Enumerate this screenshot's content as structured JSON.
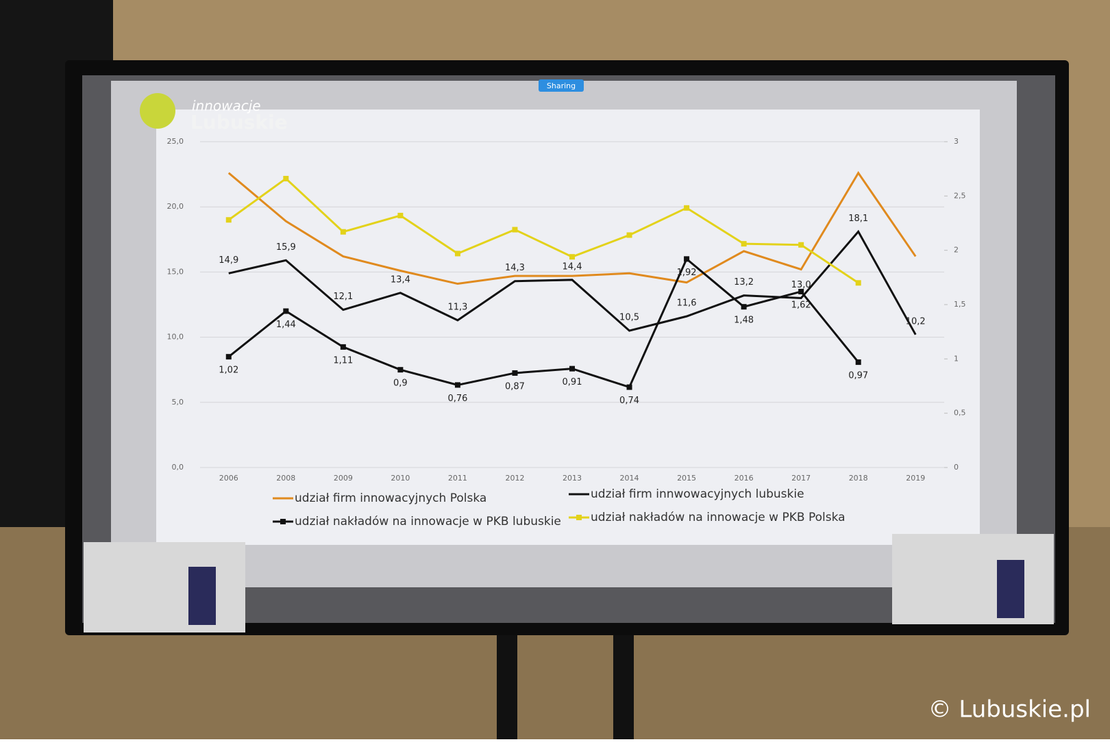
{
  "sharing_badge": "Sharing",
  "logo": [
    "innowacje",
    "Lubuskie"
  ],
  "watermark": "© Lubuskie.pl",
  "chart_data": {
    "type": "line",
    "categories": [
      "2006",
      "2008",
      "2009",
      "2010",
      "2011",
      "2012",
      "2013",
      "2014",
      "2015",
      "2016",
      "2017",
      "2018",
      "2019"
    ],
    "ylim": [
      0,
      25
    ],
    "yticks": [
      {
        "value": 0,
        "label": "0,0"
      },
      {
        "value": 5,
        "label": "5,0"
      },
      {
        "value": 10,
        "label": "10,0"
      },
      {
        "value": 15,
        "label": "15,0"
      },
      {
        "value": 20,
        "label": "20,0"
      },
      {
        "value": 25,
        "label": "25,0"
      }
    ],
    "y2lim": [
      0,
      3
    ],
    "y2ticks": [
      0,
      {
        "value": 0.5,
        "label": "0,5"
      },
      1,
      {
        "value": 1.5,
        "label": "1,5"
      },
      2,
      {
        "value": 2.5,
        "label": "2,5"
      },
      3
    ],
    "grid": true,
    "series": [
      {
        "name": "udział firm innowacyjnych Polska",
        "color": "#e08a1e",
        "values": [
          22.6,
          18.9,
          16.2,
          15.1,
          14.1,
          14.7,
          14.7,
          14.9,
          14.2,
          16.6,
          15.2,
          22.6,
          16.2
        ]
      },
      {
        "name": "udział firm innwowacyjnych lubuskie",
        "color": "#111111",
        "values": [
          14.9,
          15.9,
          12.1,
          13.4,
          11.3,
          14.3,
          14.4,
          10.5,
          11.6,
          13.2,
          13.0,
          18.1,
          10.2
        ],
        "value_labels": [
          "14,9",
          "15,9",
          "12,1",
          "13,4",
          "11,3",
          "14,3",
          "14,4",
          "10,5",
          "11,6",
          "13,2",
          "13,0",
          "18,1",
          "10,2"
        ]
      },
      {
        "name": "udział nakładów na innowacje w PKB lubuskie",
        "color": "#111111",
        "axis": "y2",
        "marker": "square",
        "values": [
          1.02,
          1.44,
          1.11,
          0.9,
          0.76,
          0.87,
          0.91,
          0.74,
          1.92,
          1.48,
          1.62,
          0.97,
          null
        ],
        "value_labels": [
          "1,02",
          "1,44",
          "1,11",
          "0,9",
          "0,76",
          "0,87",
          "0,91",
          "0,74",
          "1,92",
          "1,48",
          "1,62",
          "0,97",
          null
        ]
      },
      {
        "name": "udział nakładów na innowacje w PKB Polska",
        "color": "#e3d21a",
        "axis": "y2",
        "marker": "square",
        "values": [
          2.28,
          2.66,
          2.17,
          2.32,
          1.97,
          2.19,
          1.94,
          2.14,
          2.39,
          2.06,
          2.05,
          1.7,
          null
        ]
      }
    ]
  }
}
